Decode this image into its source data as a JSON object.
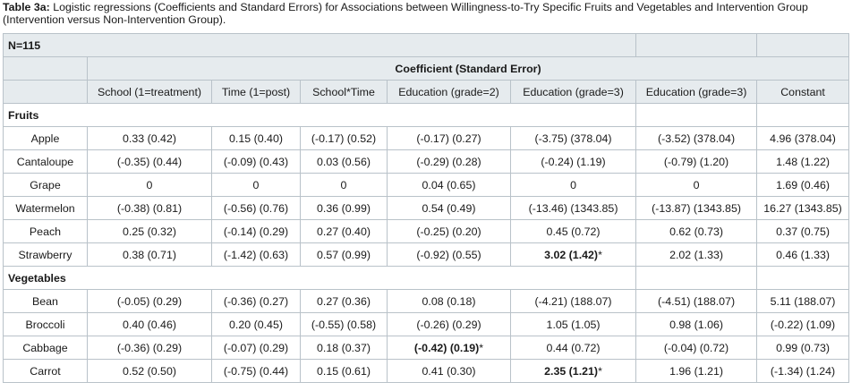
{
  "caption": {
    "label": "Table 3a:",
    "text": " Logistic regressions (Coefficients and Standard Errors) for Associations between Willingness-to-Try Specific Fruits and Vegetables and Intervention Group (Intervention versus Non-Intervention Group)."
  },
  "table": {
    "n_label": "N=115",
    "coef_header": "Coefficient (Standard Error)",
    "columns": [
      "School (1=treatment)",
      "Time (1=post)",
      "School*Time",
      "Education (grade=2)",
      "Education (grade=3)",
      "Education (grade=3)",
      "Constant"
    ],
    "sections": [
      {
        "title": "Fruits",
        "rows": [
          {
            "label": "Apple",
            "cells": [
              {
                "text": "0.33 (0.42)"
              },
              {
                "text": "0.15 (0.40)"
              },
              {
                "text": "(-0.17) (0.52)"
              },
              {
                "text": "(-0.17) (0.27)"
              },
              {
                "text": "(-3.75) (378.04)"
              },
              {
                "text": "(-3.52) (378.04)"
              },
              {
                "text": "4.96 (378.04)"
              }
            ]
          },
          {
            "label": "Cantaloupe",
            "cells": [
              {
                "text": "(-0.35) (0.44)"
              },
              {
                "text": "(-0.09) (0.43)"
              },
              {
                "text": "0.03 (0.56)"
              },
              {
                "text": "(-0.29) (0.28)"
              },
              {
                "text": "(-0.24) (1.19)"
              },
              {
                "text": "(-0.79) (1.20)"
              },
              {
                "text": "1.48 (1.22)"
              }
            ]
          },
          {
            "label": "Grape",
            "cells": [
              {
                "text": "0"
              },
              {
                "text": "0"
              },
              {
                "text": "0"
              },
              {
                "text": "0.04 (0.65)"
              },
              {
                "text": "0"
              },
              {
                "text": "0"
              },
              {
                "text": "1.69 (0.46)"
              }
            ]
          },
          {
            "label": "Watermelon",
            "cells": [
              {
                "text": "(-0.38) (0.81)"
              },
              {
                "text": "(-0.56) (0.76)"
              },
              {
                "text": "0.36 (0.99)"
              },
              {
                "text": "0.54 (0.49)"
              },
              {
                "text": "(-13.46) (1343.85)"
              },
              {
                "text": "(-13.87) (1343.85)"
              },
              {
                "text": "16.27 (1343.85)"
              }
            ]
          },
          {
            "label": "Peach",
            "cells": [
              {
                "text": "0.25 (0.32)"
              },
              {
                "text": "(-0.14) (0.29)"
              },
              {
                "text": "0.27 (0.40)"
              },
              {
                "text": "(-0.25) (0.20)"
              },
              {
                "text": "0.45 (0.72)"
              },
              {
                "text": "0.62 (0.73)"
              },
              {
                "text": "0.37 (0.75)"
              }
            ]
          },
          {
            "label": "Strawberry",
            "cells": [
              {
                "text": "0.38 (0.71)"
              },
              {
                "text": "(-1.42) (0.63)"
              },
              {
                "text": "0.57 (0.99)"
              },
              {
                "text": "(-0.92) (0.55)"
              },
              {
                "text": "3.02 (1.42)",
                "sig": "*"
              },
              {
                "text": "2.02 (1.33)"
              },
              {
                "text": "0.46 (1.33)"
              }
            ]
          }
        ]
      },
      {
        "title": "Vegetables",
        "rows": [
          {
            "label": "Bean",
            "cells": [
              {
                "text": "(-0.05) (0.29)"
              },
              {
                "text": "(-0.36) (0.27)"
              },
              {
                "text": "0.27 (0.36)"
              },
              {
                "text": "0.08 (0.18)"
              },
              {
                "text": "(-4.21) (188.07)"
              },
              {
                "text": "(-4.51) (188.07)"
              },
              {
                "text": "5.11 (188.07)"
              }
            ]
          },
          {
            "label": "Broccoli",
            "cells": [
              {
                "text": "0.40 (0.46)"
              },
              {
                "text": "0.20 (0.45)"
              },
              {
                "text": "(-0.55) (0.58)"
              },
              {
                "text": "(-0.26) (0.29)"
              },
              {
                "text": "1.05 (1.05)"
              },
              {
                "text": "0.98 (1.06)"
              },
              {
                "text": "(-0.22) (1.09)"
              }
            ]
          },
          {
            "label": "Cabbage",
            "cells": [
              {
                "text": "(-0.36) (0.29)"
              },
              {
                "text": "(-0.07) (0.29)"
              },
              {
                "text": "0.18 (0.37)"
              },
              {
                "text": "(-0.42) (0.19)",
                "sig": "*"
              },
              {
                "text": "0.44 (0.72)"
              },
              {
                "text": "(-0.04) (0.72)"
              },
              {
                "text": "0.99 (0.73)"
              }
            ]
          },
          {
            "label": "Carrot",
            "cells": [
              {
                "text": "0.52 (0.50)"
              },
              {
                "text": "(-0.75) (0.44)"
              },
              {
                "text": "0.15 (0.61)"
              },
              {
                "text": "0.41 (0.30)"
              },
              {
                "text": "2.35 (1.21)",
                "sig": "*"
              },
              {
                "text": "1.96 (1.21)"
              },
              {
                "text": "(-1.34) (1.24)"
              }
            ]
          }
        ]
      }
    ]
  }
}
